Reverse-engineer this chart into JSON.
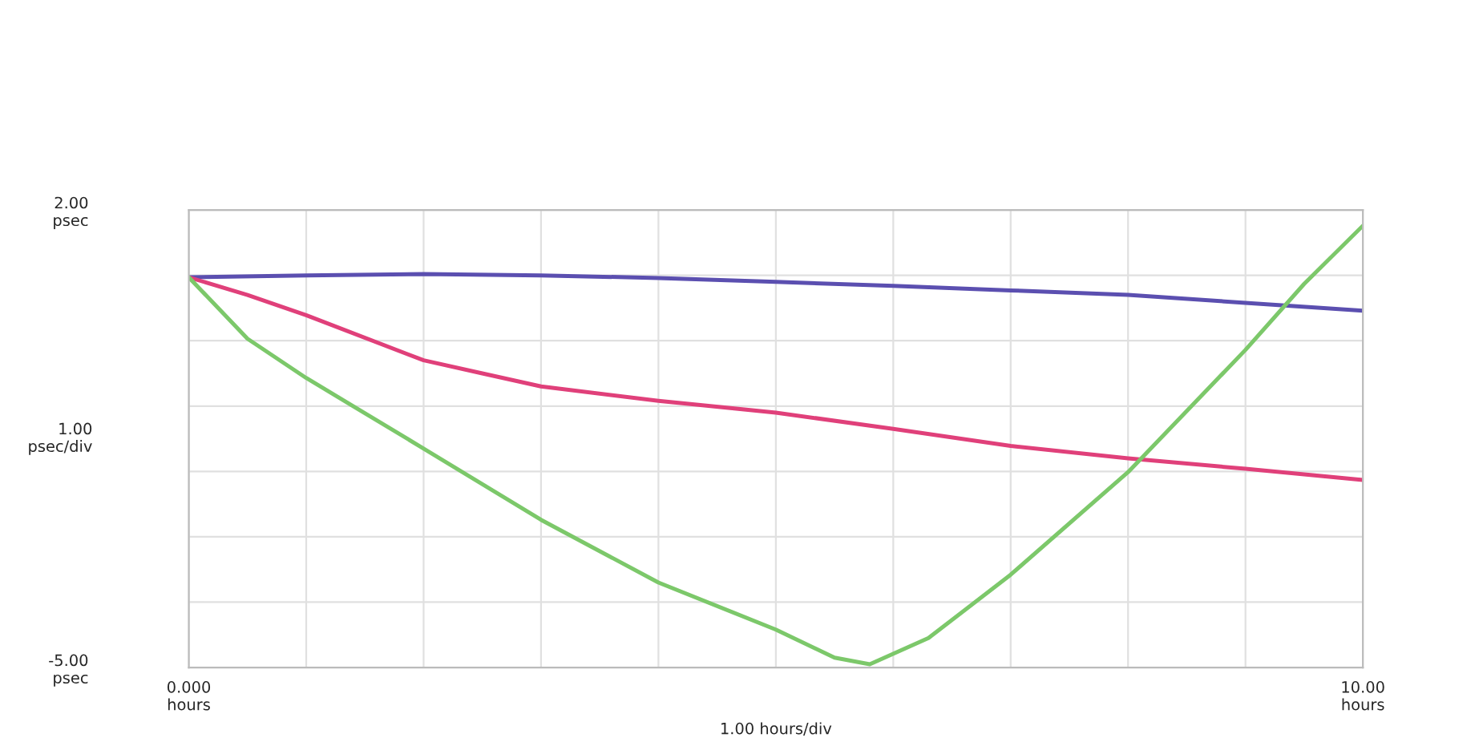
{
  "chart_data": {
    "type": "line",
    "xlabel": "1.00 hours/div",
    "ylabel": "1.00\npsec/div",
    "xlim": [
      0,
      10
    ],
    "ylim": [
      -5,
      2
    ],
    "xticks": [
      {
        "value": 0,
        "label": "0.000\nhours"
      },
      {
        "value": 1,
        "label": null
      },
      {
        "value": 2,
        "label": null
      },
      {
        "value": 3,
        "label": null
      },
      {
        "value": 4,
        "label": null
      },
      {
        "value": 5,
        "label": null
      },
      {
        "value": 6,
        "label": null
      },
      {
        "value": 7,
        "label": null
      },
      {
        "value": 8,
        "label": null
      },
      {
        "value": 9,
        "label": null
      },
      {
        "value": 10,
        "label": "10.00\nhours"
      }
    ],
    "yticks": [
      {
        "value": -5,
        "label": "-5.00\npsec"
      },
      {
        "value": -4,
        "label": null
      },
      {
        "value": -3,
        "label": null
      },
      {
        "value": -2,
        "label": null
      },
      {
        "value": -1,
        "label": null
      },
      {
        "value": 0,
        "label": null
      },
      {
        "value": 1,
        "label": null
      },
      {
        "value": 2,
        "label": "2.00\npsec"
      }
    ],
    "grid": true,
    "legend": false,
    "series": [
      {
        "color": "#5b4fb0",
        "x": [
          0,
          1,
          2,
          3,
          4,
          5,
          6,
          7,
          8,
          9,
          10
        ],
        "values": [
          0.97,
          1.0,
          1.02,
          1.0,
          0.96,
          0.9,
          0.84,
          0.77,
          0.7,
          0.58,
          0.46
        ]
      },
      {
        "color": "#e0407a",
        "x": [
          0,
          0.5,
          1,
          2,
          2.5,
          3,
          4,
          5,
          6,
          7,
          8,
          9,
          10
        ],
        "values": [
          0.97,
          0.7,
          0.39,
          -0.3,
          -0.5,
          -0.7,
          -0.92,
          -1.1,
          -1.35,
          -1.61,
          -1.8,
          -1.96,
          -2.13
        ]
      },
      {
        "color": "#7cc86a",
        "x": [
          0,
          0.5,
          1,
          2,
          3,
          4,
          5,
          5.5,
          5.8,
          6.3,
          7,
          8,
          9,
          9.5,
          10
        ],
        "values": [
          0.97,
          0.03,
          -0.57,
          -1.65,
          -2.74,
          -3.7,
          -4.42,
          -4.85,
          -4.95,
          -4.55,
          -3.58,
          -2.01,
          -0.14,
          0.87,
          1.76
        ]
      }
    ]
  }
}
